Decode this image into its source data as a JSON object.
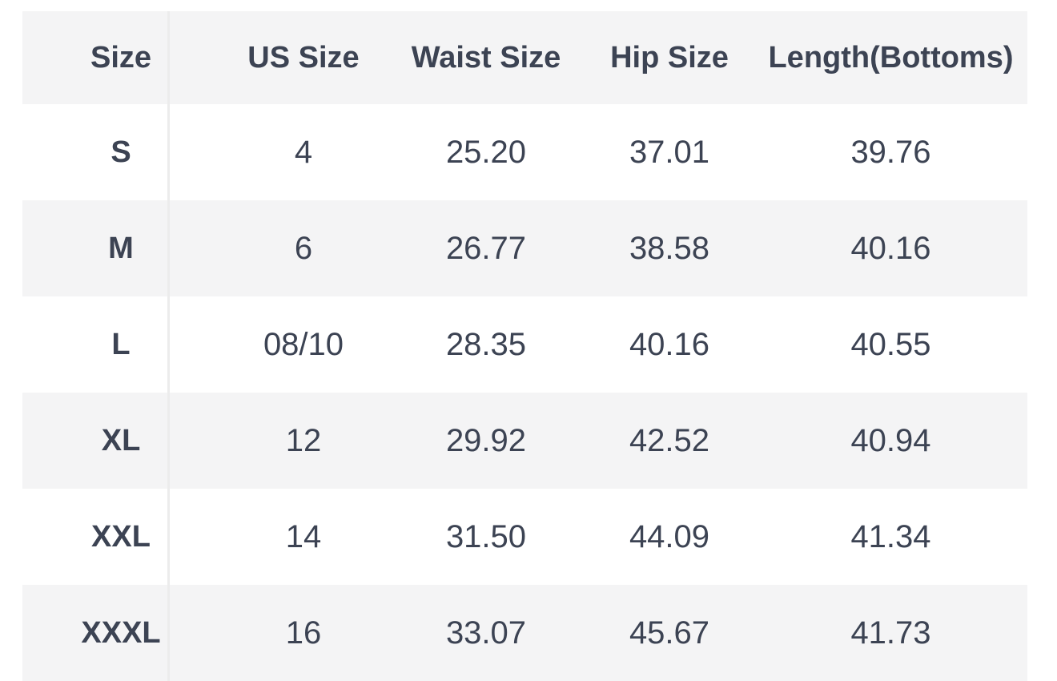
{
  "size_chart": {
    "columns": [
      "Size",
      "US Size",
      "Waist Size",
      "Hip Size",
      "Length(Bottoms)"
    ],
    "rows": [
      {
        "size": "S",
        "us_size": "4",
        "waist_size": "25.20",
        "hip_size": "37.01",
        "length_bottoms": "39.76"
      },
      {
        "size": "M",
        "us_size": "6",
        "waist_size": "26.77",
        "hip_size": "38.58",
        "length_bottoms": "40.16"
      },
      {
        "size": "L",
        "us_size": "08/10",
        "waist_size": "28.35",
        "hip_size": "40.16",
        "length_bottoms": "40.55"
      },
      {
        "size": "XL",
        "us_size": "12",
        "waist_size": "29.92",
        "hip_size": "42.52",
        "length_bottoms": "40.94"
      },
      {
        "size": "XXL",
        "us_size": "14",
        "waist_size": "31.50",
        "hip_size": "44.09",
        "length_bottoms": "41.34"
      },
      {
        "size": "XXXL",
        "us_size": "16",
        "waist_size": "33.07",
        "hip_size": "45.67",
        "length_bottoms": "41.73"
      }
    ]
  },
  "colors": {
    "background": "#ffffff",
    "stripe": "#f4f4f5",
    "text": "#3c4353",
    "divider": "#ececec"
  }
}
